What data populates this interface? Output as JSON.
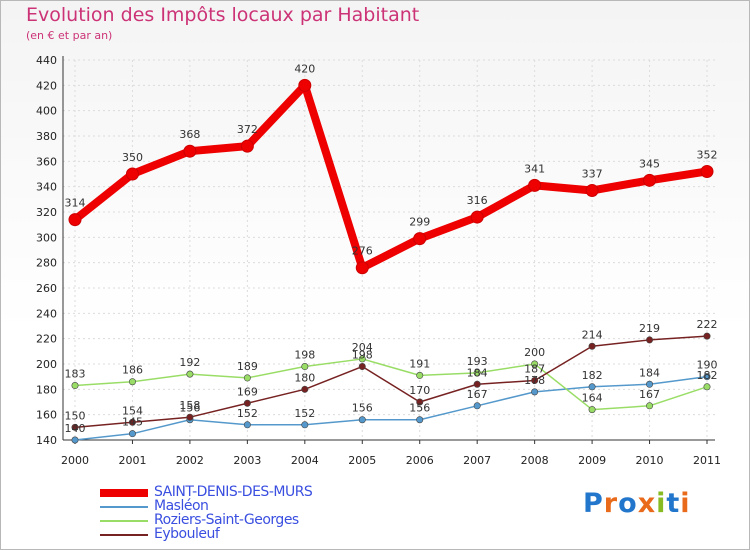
{
  "chart_data": {
    "type": "line",
    "title": "Evolution des Impôts locaux par Habitant",
    "subtitle": "(en € et par an)",
    "x": [
      "2000",
      "2001",
      "2002",
      "2003",
      "2004",
      "2005",
      "2006",
      "2007",
      "2008",
      "2009",
      "2010",
      "2011"
    ],
    "ylim": [
      140,
      440
    ],
    "yticks": [
      140,
      160,
      180,
      200,
      220,
      240,
      260,
      280,
      300,
      320,
      340,
      360,
      380,
      400,
      420,
      440
    ],
    "series": [
      {
        "name": "SAINT-DENIS-DES-MURS",
        "color": "#ee0000",
        "values": [
          314,
          350,
          368,
          372,
          420,
          276,
          299,
          316,
          341,
          337,
          345,
          352
        ]
      },
      {
        "name": "Masléon",
        "color": "#5599cc",
        "values": [
          140,
          145,
          156,
          152,
          152,
          156,
          156,
          167,
          178,
          182,
          184,
          190
        ]
      },
      {
        "name": "Roziers-Saint-Georges",
        "color": "#99dd66",
        "values": [
          183,
          186,
          192,
          189,
          198,
          204,
          191,
          193,
          200,
          164,
          167,
          182
        ]
      },
      {
        "name": "Eybouleuf",
        "color": "#772222",
        "values": [
          150,
          154,
          158,
          169,
          180,
          198,
          170,
          184,
          187,
          214,
          219,
          222
        ]
      }
    ]
  },
  "logo": {
    "text": "Proxiti"
  }
}
